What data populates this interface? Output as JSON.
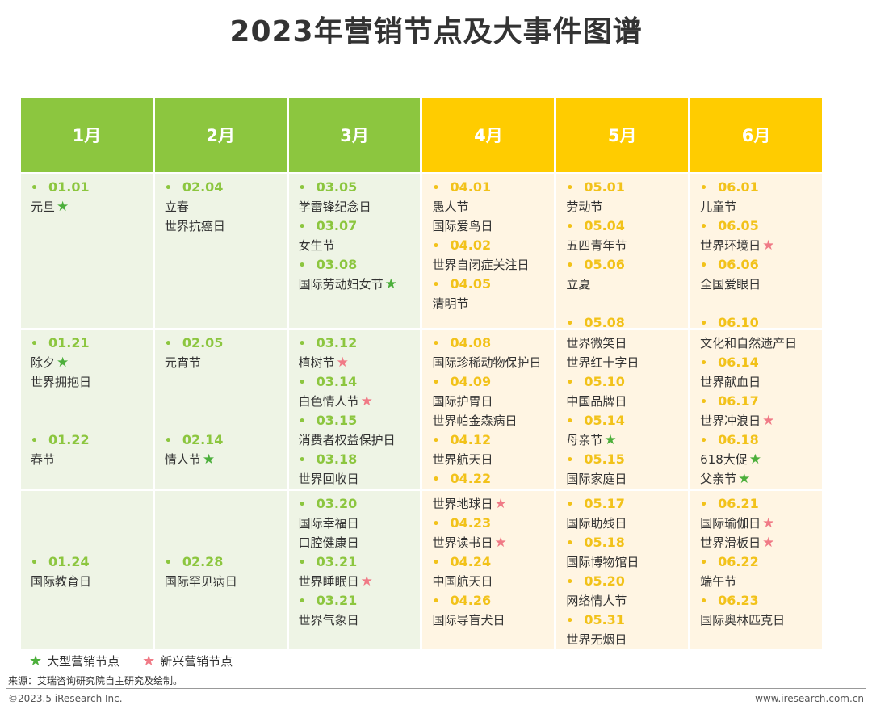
{
  "title": "2023年营销节点及大事件图谱",
  "months": [
    {
      "label": "1月",
      "theme": "green"
    },
    {
      "label": "2月",
      "theme": "green"
    },
    {
      "label": "3月",
      "theme": "green"
    },
    {
      "label": "4月",
      "theme": "yellow"
    },
    {
      "label": "5月",
      "theme": "yellow"
    },
    {
      "label": "6月",
      "theme": "yellow"
    }
  ],
  "rows": [
    [
      [
        {
          "date": "01.01",
          "names": [
            {
              "text": "元旦",
              "star": "big"
            }
          ]
        }
      ],
      [
        {
          "date": "02.04",
          "names": [
            {
              "text": "立春"
            },
            {
              "text": "世界抗癌日"
            }
          ]
        }
      ],
      [
        {
          "date": "03.05",
          "names": [
            {
              "text": "学雷锋纪念日"
            }
          ]
        },
        {
          "date": "03.07",
          "names": [
            {
              "text": "女生节"
            }
          ]
        },
        {
          "date": "03.08",
          "names": [
            {
              "text": "国际劳动妇女节",
              "star": "big"
            }
          ]
        }
      ],
      [
        {
          "date": "04.01",
          "names": [
            {
              "text": "愚人节"
            },
            {
              "text": "国际爱鸟日"
            }
          ]
        },
        {
          "date": "04.02",
          "names": [
            {
              "text": "世界自闭症关注日"
            }
          ]
        },
        {
          "date": "04.05",
          "names": [
            {
              "text": "清明节"
            }
          ]
        }
      ],
      [
        {
          "date": "05.01",
          "names": [
            {
              "text": "劳动节"
            }
          ]
        },
        {
          "date": "05.04",
          "names": [
            {
              "text": "五四青年节"
            }
          ]
        },
        {
          "date": "05.06",
          "names": [
            {
              "text": "立夏"
            }
          ],
          "gap": 1
        },
        {
          "date": "05.08",
          "names": []
        }
      ],
      [
        {
          "date": "06.01",
          "names": [
            {
              "text": "儿童节"
            }
          ]
        },
        {
          "date": "06.05",
          "names": [
            {
              "text": "世界环境日",
              "star": "new"
            }
          ]
        },
        {
          "date": "06.06",
          "names": [
            {
              "text": "全国爱眼日"
            }
          ],
          "gap": 1
        },
        {
          "date": "06.10",
          "names": []
        }
      ]
    ],
    [
      [
        {
          "date": "01.21",
          "names": [
            {
              "text": "除夕",
              "star": "big"
            },
            {
              "text": "世界拥抱日"
            }
          ],
          "gap": 2
        },
        {
          "date": "01.22",
          "names": [
            {
              "text": "春节"
            }
          ]
        }
      ],
      [
        {
          "date": "02.05",
          "names": [
            {
              "text": "元宵节"
            }
          ],
          "gap": 3
        },
        {
          "date": "02.14",
          "names": [
            {
              "text": "情人节",
              "star": "big"
            }
          ]
        }
      ],
      [
        {
          "date": "03.12",
          "names": [
            {
              "text": "植树节",
              "star": "new"
            }
          ]
        },
        {
          "date": "03.14",
          "names": [
            {
              "text": "白色情人节",
              "star": "new"
            }
          ]
        },
        {
          "date": "03.15",
          "names": [
            {
              "text": "消费者权益保护日"
            }
          ]
        },
        {
          "date": "03.18",
          "names": [
            {
              "text": "世界回收日"
            }
          ]
        }
      ],
      [
        {
          "date": "04.08",
          "names": [
            {
              "text": "国际珍稀动物保护日"
            }
          ]
        },
        {
          "date": "04.09",
          "names": [
            {
              "text": "国际护胃日"
            },
            {
              "text": "世界帕金森病日"
            }
          ]
        },
        {
          "date": "04.12",
          "names": [
            {
              "text": "世界航天日"
            }
          ]
        },
        {
          "date": "04.22",
          "names": []
        }
      ],
      [
        {
          "names": [
            {
              "text": "世界微笑日"
            },
            {
              "text": "世界红十字日"
            }
          ]
        },
        {
          "date": "05.10",
          "names": [
            {
              "text": "中国品牌日"
            }
          ]
        },
        {
          "date": "05.14",
          "names": [
            {
              "text": "母亲节",
              "star": "big"
            }
          ]
        },
        {
          "date": "05.15",
          "names": [
            {
              "text": "国际家庭日"
            }
          ]
        }
      ],
      [
        {
          "names": [
            {
              "text": "文化和自然遗产日"
            }
          ]
        },
        {
          "date": "06.14",
          "names": [
            {
              "text": "世界献血日"
            }
          ]
        },
        {
          "date": "06.17",
          "names": [
            {
              "text": "世界冲浪日",
              "star": "new"
            }
          ]
        },
        {
          "date": "06.18",
          "names": [
            {
              "text": "618大促",
              "star": "big"
            },
            {
              "text": "父亲节",
              "star": "big"
            }
          ]
        }
      ]
    ],
    [
      [
        {
          "names": [],
          "gap": 3
        },
        {
          "date": "01.24",
          "names": [
            {
              "text": "国际教育日"
            }
          ]
        }
      ],
      [
        {
          "names": [],
          "gap": 3
        },
        {
          "date": "02.28",
          "names": [
            {
              "text": "国际罕见病日"
            }
          ]
        }
      ],
      [
        {
          "date": "03.20",
          "names": [
            {
              "text": "国际幸福日"
            },
            {
              "text": "口腔健康日"
            }
          ]
        },
        {
          "date": "03.21",
          "names": [
            {
              "text": "世界睡眠日",
              "star": "new"
            }
          ]
        },
        {
          "date": "03.21",
          "names": [
            {
              "text": "世界气象日"
            }
          ]
        }
      ],
      [
        {
          "names": [
            {
              "text": "世界地球日",
              "star": "new"
            }
          ]
        },
        {
          "date": "04.23",
          "names": [
            {
              "text": "世界读书日",
              "star": "new"
            }
          ]
        },
        {
          "date": "04.24",
          "names": [
            {
              "text": "中国航天日"
            }
          ]
        },
        {
          "date": "04.26",
          "names": [
            {
              "text": "国际导盲犬日"
            }
          ]
        }
      ],
      [
        {
          "date": "05.17",
          "names": [
            {
              "text": "国际助残日"
            }
          ]
        },
        {
          "date": "05.18",
          "names": [
            {
              "text": "国际博物馆日"
            }
          ]
        },
        {
          "date": "05.20",
          "names": [
            {
              "text": "网络情人节"
            }
          ]
        },
        {
          "date": "05.31",
          "names": [
            {
              "text": "世界无烟日"
            }
          ]
        }
      ],
      [
        {
          "date": "06.21",
          "names": [
            {
              "text": "国际瑜伽日",
              "star": "new"
            },
            {
              "text": "世界滑板日",
              "star": "new"
            }
          ]
        },
        {
          "date": "06.22",
          "names": [
            {
              "text": "端午节"
            }
          ]
        },
        {
          "date": "06.23",
          "names": [
            {
              "text": "国际奥林匹克日"
            }
          ]
        }
      ]
    ]
  ],
  "legend": {
    "big_label": "大型营销节点",
    "new_label": "新兴营销节点",
    "big_color": "#4caf3b",
    "new_color": "#f07a86"
  },
  "footer": {
    "source": "来源：艾瑞咨询研究院自主研究及绘制。",
    "copyright": "©2023.5 iResearch Inc.",
    "site": "www.iresearch.com.cn"
  }
}
